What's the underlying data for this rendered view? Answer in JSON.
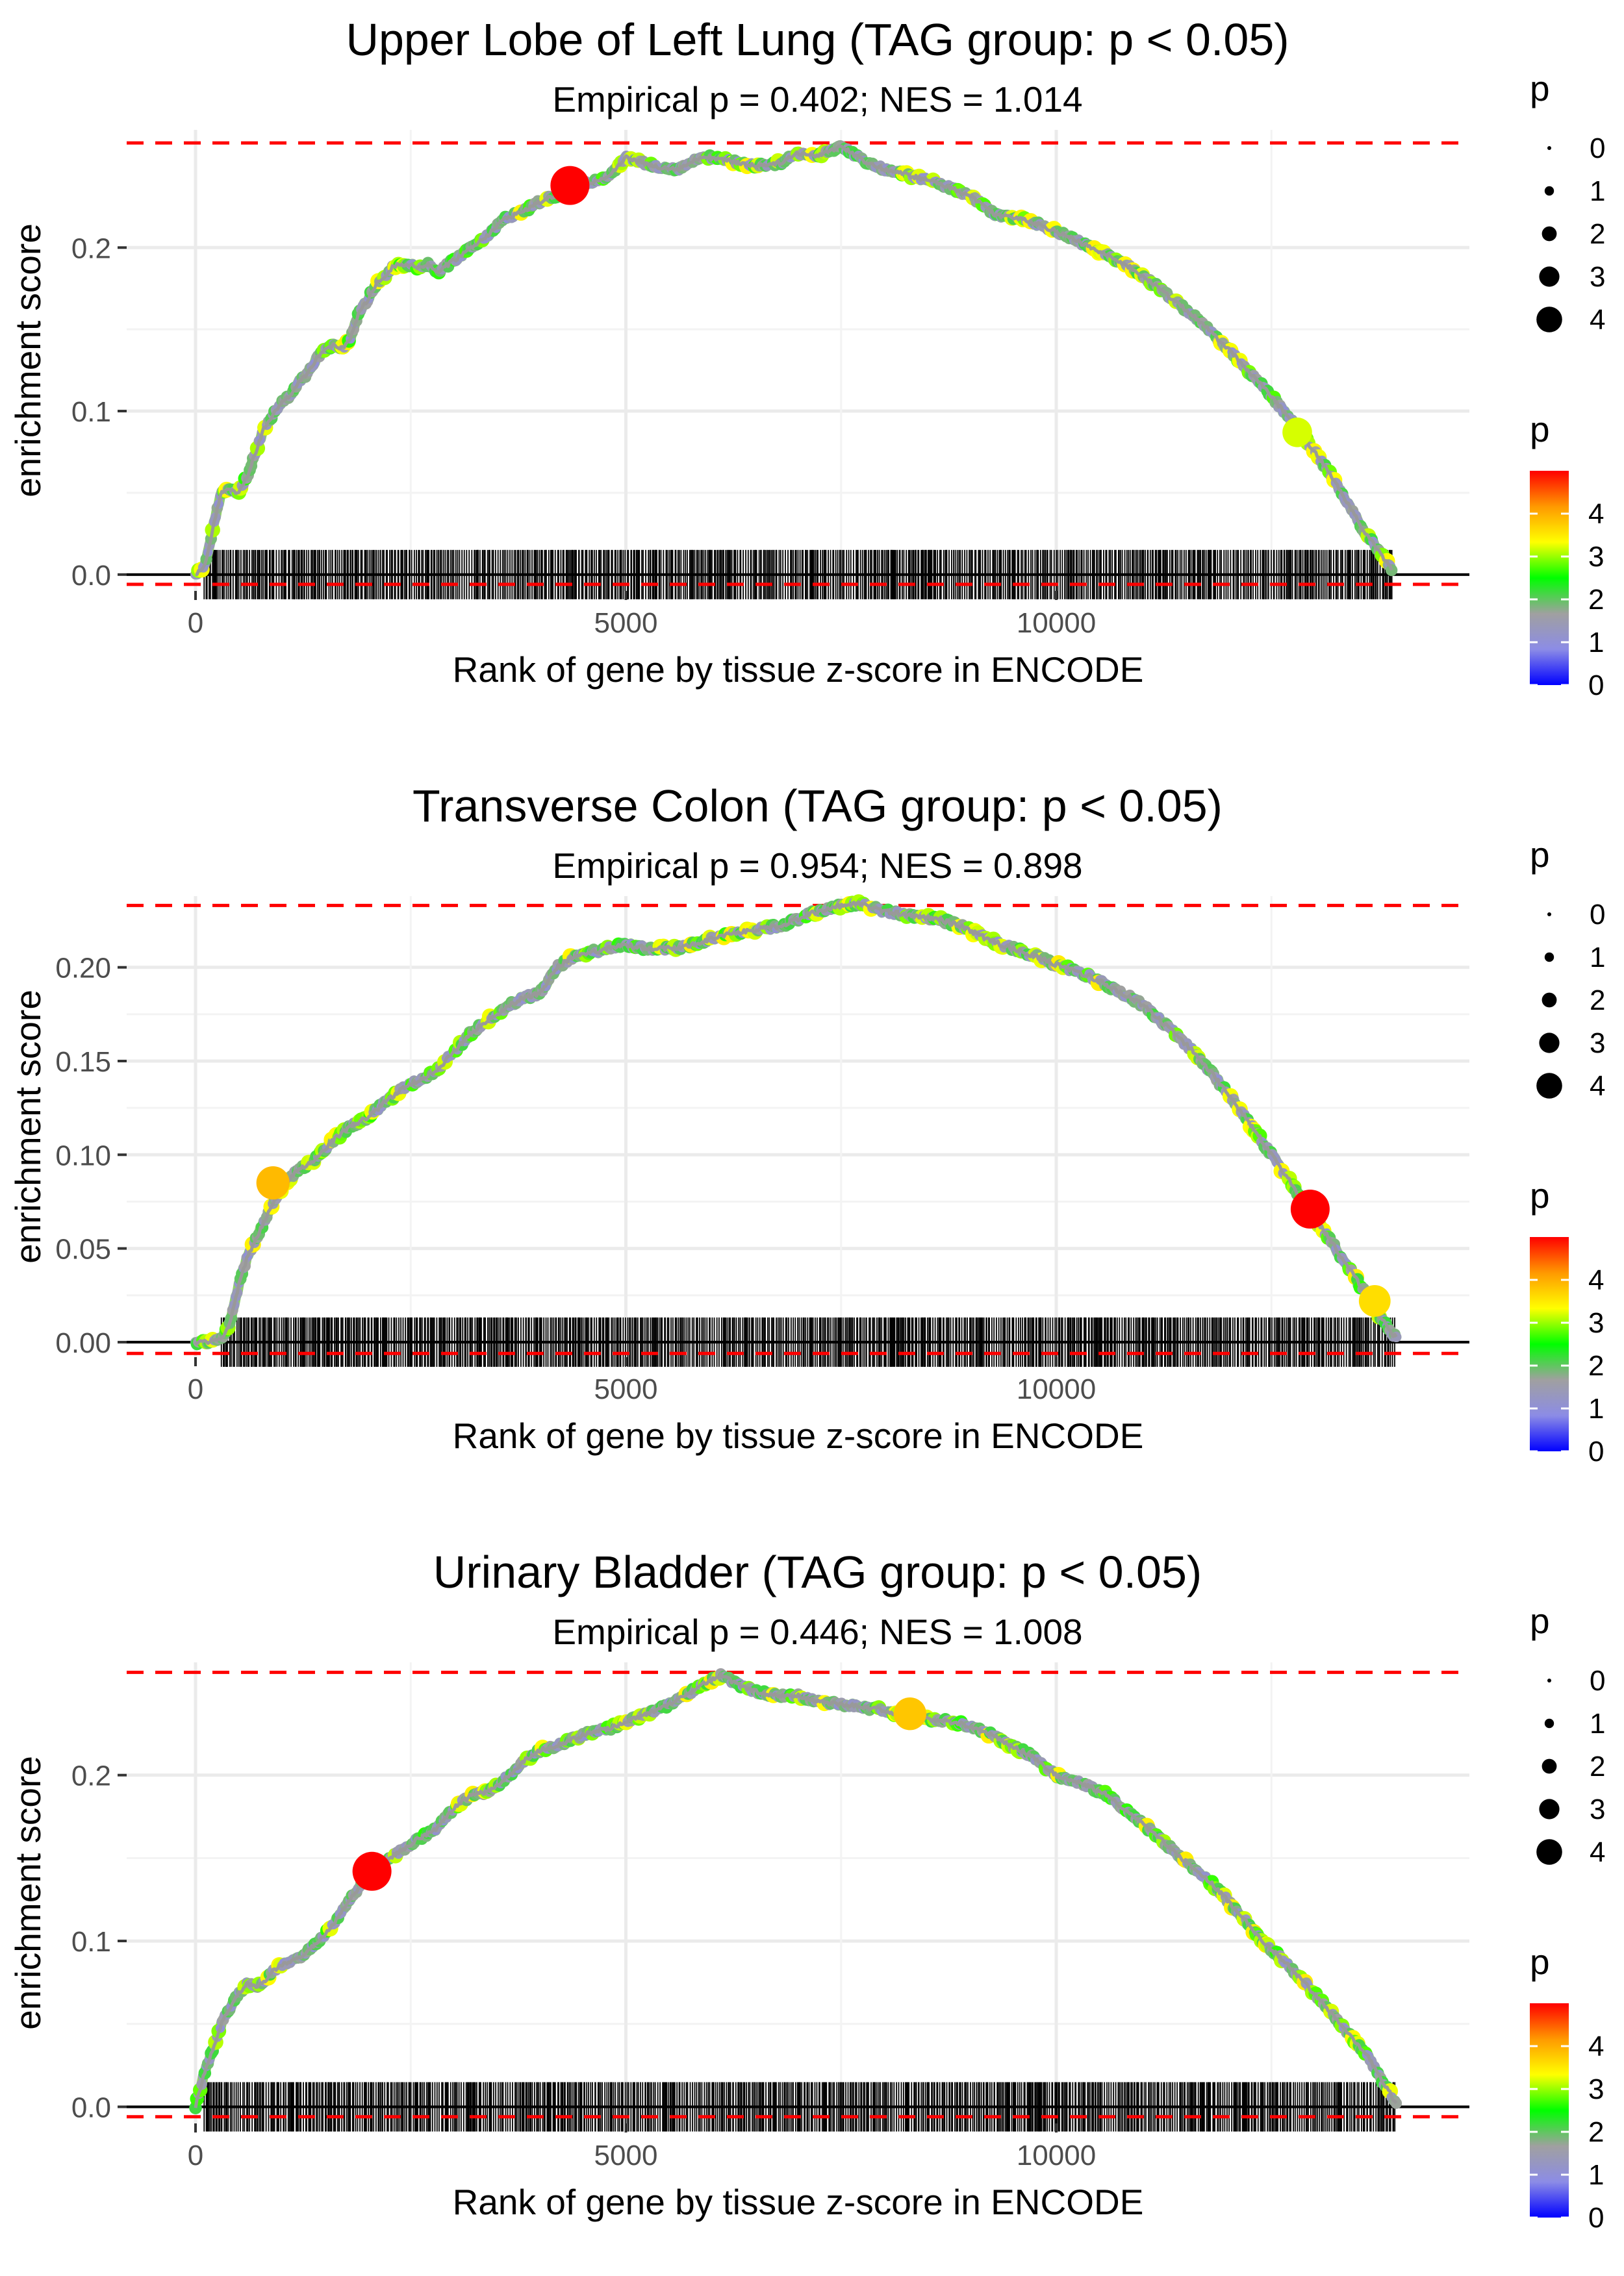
{
  "chart_data": [
    {
      "type": "line",
      "title": "Upper Lobe of Left Lung (TAG group: p < 0.05)",
      "subtitle": "Empirical p = 0.402; NES = 1.014",
      "xlabel": "Rank of gene by tissue z-score in ENCODE",
      "ylabel": "enrichment score",
      "xlim": [
        -800,
        14800
      ],
      "ylim": [
        -0.01,
        0.272
      ],
      "xticks": [
        0,
        5000,
        10000
      ],
      "xtick_labels": [
        "0",
        "5000",
        "10000"
      ],
      "yticks": [
        0.0,
        0.1,
        0.2
      ],
      "ytick_labels": [
        "0.0",
        "0.1",
        "0.2"
      ],
      "dashed_lines": [
        0.264,
        -0.006
      ],
      "n_genes": 13950,
      "rug_start": 100,
      "rug_end": 13900,
      "curve": {
        "x": [
          0,
          100,
          150,
          250,
          300,
          400,
          500,
          600,
          700,
          800,
          900,
          1000,
          1100,
          1200,
          1300,
          1400,
          1500,
          1600,
          1700,
          1800,
          1900,
          2000,
          2100,
          2200,
          2300,
          2400,
          2600,
          2700,
          2800,
          3000,
          3200,
          3400,
          3600,
          3800,
          4000,
          4200,
          4400,
          4600,
          4800,
          5000,
          5300,
          5600,
          5900,
          6200,
          6500,
          6800,
          7000,
          7200,
          7500,
          7800,
          8000,
          8300,
          8600,
          9000,
          9300,
          9600,
          10000,
          10400,
          10800,
          11200,
          11600,
          12000,
          12400,
          12800,
          13200,
          13600,
          13900
        ],
        "y": [
          0.0,
          0.004,
          0.015,
          0.04,
          0.05,
          0.052,
          0.05,
          0.06,
          0.075,
          0.09,
          0.098,
          0.105,
          0.11,
          0.118,
          0.122,
          0.132,
          0.138,
          0.14,
          0.138,
          0.145,
          0.16,
          0.168,
          0.178,
          0.182,
          0.189,
          0.19,
          0.188,
          0.19,
          0.185,
          0.192,
          0.2,
          0.208,
          0.218,
          0.222,
          0.228,
          0.232,
          0.238,
          0.24,
          0.244,
          0.255,
          0.25,
          0.248,
          0.256,
          0.253,
          0.25,
          0.252,
          0.258,
          0.256,
          0.262,
          0.252,
          0.248,
          0.244,
          0.24,
          0.232,
          0.22,
          0.218,
          0.21,
          0.2,
          0.19,
          0.175,
          0.158,
          0.138,
          0.115,
          0.09,
          0.06,
          0.025,
          0.003
        ]
      },
      "highlights": [
        {
          "x": 4350,
          "y": 0.238,
          "p": 5.0
        },
        {
          "x": 12800,
          "y": 0.087,
          "p": 3.2
        }
      ],
      "size_legend": {
        "title": "p",
        "labels": [
          "0",
          "1",
          "2",
          "3",
          "4"
        ],
        "values": [
          0,
          1,
          2,
          3,
          4
        ]
      },
      "color_legend": {
        "title": "p",
        "labels": [
          "4",
          "3",
          "2",
          "1",
          "0"
        ],
        "values": [
          4,
          3,
          2,
          1,
          0
        ],
        "range": [
          0,
          5
        ]
      }
    },
    {
      "type": "line",
      "title": "Transverse Colon (TAG group: p < 0.05)",
      "subtitle": "Empirical p = 0.954; NES = 0.898",
      "xlabel": "Rank of gene by tissue z-score in ENCODE",
      "ylabel": "enrichment score",
      "xlim": [
        -800,
        14800
      ],
      "ylim": [
        -0.008,
        0.238
      ],
      "xticks": [
        0,
        5000,
        10000
      ],
      "xtick_labels": [
        "0",
        "5000",
        "10000"
      ],
      "yticks": [
        0.0,
        0.05,
        0.1,
        0.15,
        0.2
      ],
      "ytick_labels": [
        "0.00",
        "0.05",
        "0.10",
        "0.15",
        "0.20"
      ],
      "dashed_lines": [
        0.233,
        -0.006
      ],
      "n_genes": 13950,
      "rug_start": 300,
      "rug_end": 13950,
      "curve": {
        "x": [
          0,
          100,
          200,
          300,
          400,
          500,
          600,
          700,
          800,
          900,
          1000,
          1100,
          1200,
          1400,
          1600,
          1800,
          2000,
          2200,
          2400,
          2600,
          2800,
          3000,
          3200,
          3400,
          3600,
          3800,
          4000,
          4200,
          4400,
          4600,
          4800,
          5000,
          5300,
          5600,
          5900,
          6200,
          6500,
          6800,
          7100,
          7400,
          7700,
          8000,
          8300,
          8600,
          8900,
          9200,
          9500,
          9800,
          10100,
          10400,
          10700,
          11000,
          11300,
          11600,
          11900,
          12200,
          12500,
          12800,
          13100,
          13400,
          13700,
          13950
        ],
        "y": [
          0.0,
          0.0,
          0.001,
          0.002,
          0.01,
          0.03,
          0.045,
          0.055,
          0.065,
          0.075,
          0.082,
          0.088,
          0.092,
          0.098,
          0.108,
          0.115,
          0.12,
          0.128,
          0.135,
          0.14,
          0.145,
          0.155,
          0.165,
          0.172,
          0.178,
          0.184,
          0.186,
          0.2,
          0.206,
          0.208,
          0.21,
          0.212,
          0.21,
          0.21,
          0.214,
          0.218,
          0.22,
          0.222,
          0.228,
          0.232,
          0.234,
          0.23,
          0.228,
          0.226,
          0.222,
          0.215,
          0.21,
          0.205,
          0.2,
          0.195,
          0.188,
          0.18,
          0.168,
          0.155,
          0.138,
          0.12,
          0.1,
          0.08,
          0.06,
          0.04,
          0.018,
          0.002
        ]
      },
      "highlights": [
        {
          "x": 900,
          "y": 0.085,
          "p": 3.9
        },
        {
          "x": 12950,
          "y": 0.071,
          "p": 5.0
        },
        {
          "x": 13700,
          "y": 0.022,
          "p": 3.6
        }
      ],
      "size_legend": {
        "title": "p",
        "labels": [
          "0",
          "1",
          "2",
          "3",
          "4"
        ],
        "values": [
          0,
          1,
          2,
          3,
          4
        ]
      },
      "color_legend": {
        "title": "p",
        "labels": [
          "4",
          "3",
          "2",
          "1",
          "0"
        ],
        "values": [
          4,
          3,
          2,
          1,
          0
        ],
        "range": [
          0,
          5
        ]
      }
    },
    {
      "type": "line",
      "title": "Urinary Bladder (TAG group: p < 0.05)",
      "subtitle": "Empirical p = 0.446; NES = 1.008",
      "xlabel": "Rank of gene by tissue z-score in ENCODE",
      "ylabel": "enrichment score",
      "xlim": [
        -800,
        14800
      ],
      "ylim": [
        -0.01,
        0.268
      ],
      "xticks": [
        0,
        5000,
        10000
      ],
      "xtick_labels": [
        "0",
        "5000",
        "10000"
      ],
      "yticks": [
        0.0,
        0.1,
        0.2
      ],
      "ytick_labels": [
        "0.0",
        "0.1",
        "0.2"
      ],
      "dashed_lines": [
        0.262,
        -0.006
      ],
      "n_genes": 13950,
      "rug_start": 100,
      "rug_end": 13950,
      "curve": {
        "x": [
          0,
          100,
          200,
          300,
          400,
          500,
          600,
          700,
          800,
          900,
          1000,
          1200,
          1400,
          1600,
          1800,
          2000,
          2200,
          2400,
          2600,
          2800,
          3000,
          3200,
          3400,
          3600,
          3800,
          4000,
          4200,
          4400,
          4600,
          4800,
          5000,
          5300,
          5600,
          5900,
          6100,
          6400,
          6700,
          7000,
          7300,
          7600,
          7900,
          8200,
          8500,
          8800,
          9100,
          9400,
          9700,
          10000,
          10300,
          10600,
          10900,
          11200,
          11500,
          11800,
          12100,
          12400,
          12700,
          13000,
          13300,
          13600,
          13950
        ],
        "y": [
          0.0,
          0.02,
          0.035,
          0.05,
          0.06,
          0.068,
          0.075,
          0.072,
          0.075,
          0.082,
          0.085,
          0.09,
          0.098,
          0.11,
          0.125,
          0.14,
          0.148,
          0.155,
          0.162,
          0.168,
          0.18,
          0.188,
          0.19,
          0.198,
          0.208,
          0.215,
          0.218,
          0.222,
          0.226,
          0.228,
          0.232,
          0.238,
          0.245,
          0.255,
          0.26,
          0.252,
          0.248,
          0.248,
          0.244,
          0.242,
          0.24,
          0.236,
          0.234,
          0.232,
          0.228,
          0.22,
          0.212,
          0.2,
          0.195,
          0.188,
          0.175,
          0.162,
          0.148,
          0.135,
          0.118,
          0.1,
          0.085,
          0.068,
          0.05,
          0.032,
          0.002
        ]
      },
      "highlights": [
        {
          "x": 2050,
          "y": 0.142,
          "p": 5.0
        },
        {
          "x": 8300,
          "y": 0.237,
          "p": 3.8
        }
      ],
      "size_legend": {
        "title": "p",
        "labels": [
          "0",
          "1",
          "2",
          "3",
          "4"
        ],
        "values": [
          0,
          1,
          2,
          3,
          4
        ]
      },
      "color_legend": {
        "title": "p",
        "labels": [
          "4",
          "3",
          "2",
          "1",
          "0"
        ],
        "values": [
          4,
          3,
          2,
          1,
          0
        ],
        "range": [
          0,
          5
        ]
      }
    }
  ],
  "colors": {
    "gradient": [
      "#0000ff",
      "#8c8ce6",
      "#a0a0a0",
      "#00ff00",
      "#ffff00",
      "#ff9900",
      "#ff0000"
    ],
    "dashed_line": "#ff0000",
    "axis_line": "#000000",
    "grid": "#ebebeb"
  }
}
